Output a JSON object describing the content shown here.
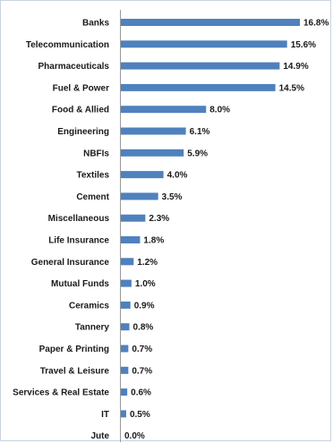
{
  "chart_data": {
    "type": "bar",
    "orientation": "horizontal",
    "title": "",
    "xlabel": "",
    "ylabel": "",
    "categories": [
      "Banks",
      "Telecommunication",
      "Pharmaceuticals",
      "Fuel & Power",
      "Food & Allied",
      "Engineering",
      "NBFIs",
      "Textiles",
      "Cement",
      "Miscellaneous",
      "Life Insurance",
      "General Insurance",
      "Mutual Funds",
      "Ceramics",
      "Tannery",
      "Paper & Printing",
      "Travel & Leisure",
      "Services & Real Estate",
      "IT",
      "Jute"
    ],
    "values": [
      16.8,
      15.6,
      14.9,
      14.5,
      8.0,
      6.1,
      5.9,
      4.0,
      3.5,
      2.3,
      1.8,
      1.2,
      1.0,
      0.9,
      0.8,
      0.7,
      0.7,
      0.6,
      0.5,
      0.0
    ],
    "value_labels": [
      "16.8%",
      "15.6%",
      "14.9%",
      "14.5%",
      "8.0%",
      "6.1%",
      "5.9%",
      "4.0%",
      "3.5%",
      "2.3%",
      "1.8%",
      "1.2%",
      "1.0%",
      "0.9%",
      "0.8%",
      "0.7%",
      "0.7%",
      "0.6%",
      "0.5%",
      "0.0%"
    ],
    "unit": "%",
    "xlim": [
      0,
      16.8
    ],
    "grid": false,
    "legend": "none",
    "bar_color": "#4f81bd"
  }
}
